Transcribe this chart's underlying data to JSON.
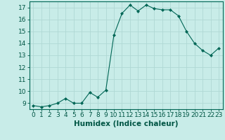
{
  "x": [
    0,
    1,
    2,
    3,
    4,
    5,
    6,
    7,
    8,
    9,
    10,
    11,
    12,
    13,
    14,
    15,
    16,
    17,
    18,
    19,
    20,
    21,
    22,
    23
  ],
  "y": [
    8.8,
    8.7,
    8.8,
    9.0,
    9.4,
    9.0,
    9.0,
    9.9,
    9.5,
    10.1,
    14.7,
    16.5,
    17.2,
    16.7,
    17.2,
    16.9,
    16.8,
    16.8,
    16.3,
    15.0,
    14.0,
    13.4,
    13.0,
    13.6
  ],
  "bg_color": "#c8ece8",
  "line_color": "#006655",
  "marker_color": "#006655",
  "grid_color": "#b0d8d4",
  "xlabel": "Humidex (Indice chaleur)",
  "xlim": [
    -0.5,
    23.5
  ],
  "ylim": [
    8.5,
    17.5
  ],
  "yticks": [
    9,
    10,
    11,
    12,
    13,
    14,
    15,
    16,
    17
  ],
  "xticks": [
    0,
    1,
    2,
    3,
    4,
    5,
    6,
    7,
    8,
    9,
    10,
    11,
    12,
    13,
    14,
    15,
    16,
    17,
    18,
    19,
    20,
    21,
    22,
    23
  ],
  "xlabel_fontsize": 7.5,
  "tick_fontsize": 6.5
}
